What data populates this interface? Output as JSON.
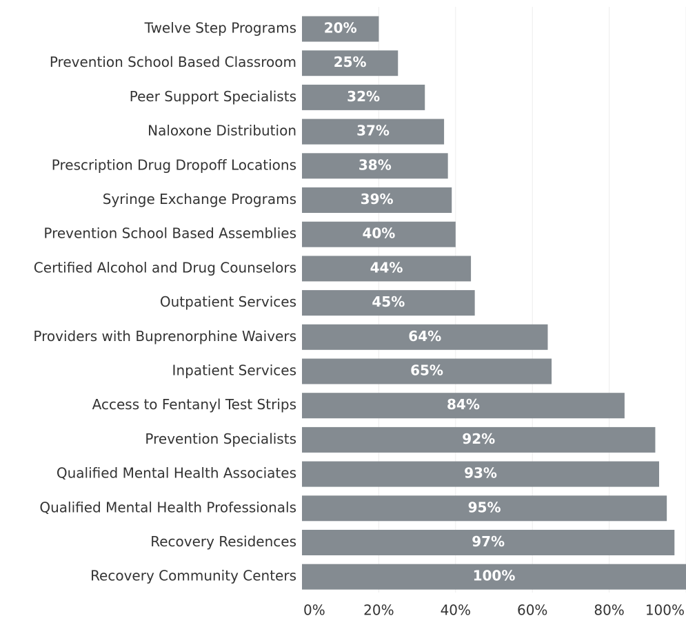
{
  "chart_data": {
    "type": "bar",
    "orientation": "horizontal",
    "categories": [
      "Twelve Step Programs",
      "Prevention School Based Classroom",
      "Peer Support Specialists",
      "Naloxone Distribution",
      "Prescription Drug Dropoff Locations",
      "Syringe Exchange Programs",
      "Prevention School Based Assemblies",
      "Certified Alcohol and Drug Counselors",
      "Outpatient Services",
      "Providers with Buprenorphine Waivers",
      "Inpatient Services",
      "Access to Fentanyl Test Strips",
      "Prevention Specialists",
      "Qualified Mental Health Associates",
      "Qualified Mental Health Professionals",
      "Recovery Residences",
      "Recovery Community Centers"
    ],
    "values": [
      20,
      25,
      32,
      37,
      38,
      39,
      40,
      44,
      45,
      64,
      65,
      84,
      92,
      93,
      95,
      97,
      100
    ],
    "value_labels": [
      "20%",
      "25%",
      "32%",
      "37%",
      "38%",
      "39%",
      "40%",
      "44%",
      "45%",
      "64%",
      "65%",
      "84%",
      "92%",
      "93%",
      "95%",
      "97%",
      "100%"
    ],
    "color": "#848b91",
    "xlim": [
      0,
      100
    ],
    "xticks": [
      {
        "value": 0,
        "label": "0%"
      },
      {
        "value": 20,
        "label": "20%"
      },
      {
        "value": 40,
        "label": "40%"
      },
      {
        "value": 60,
        "label": "60%"
      },
      {
        "value": 80,
        "label": "80%"
      },
      {
        "value": 100,
        "label": "100%"
      }
    ],
    "grid": true
  }
}
